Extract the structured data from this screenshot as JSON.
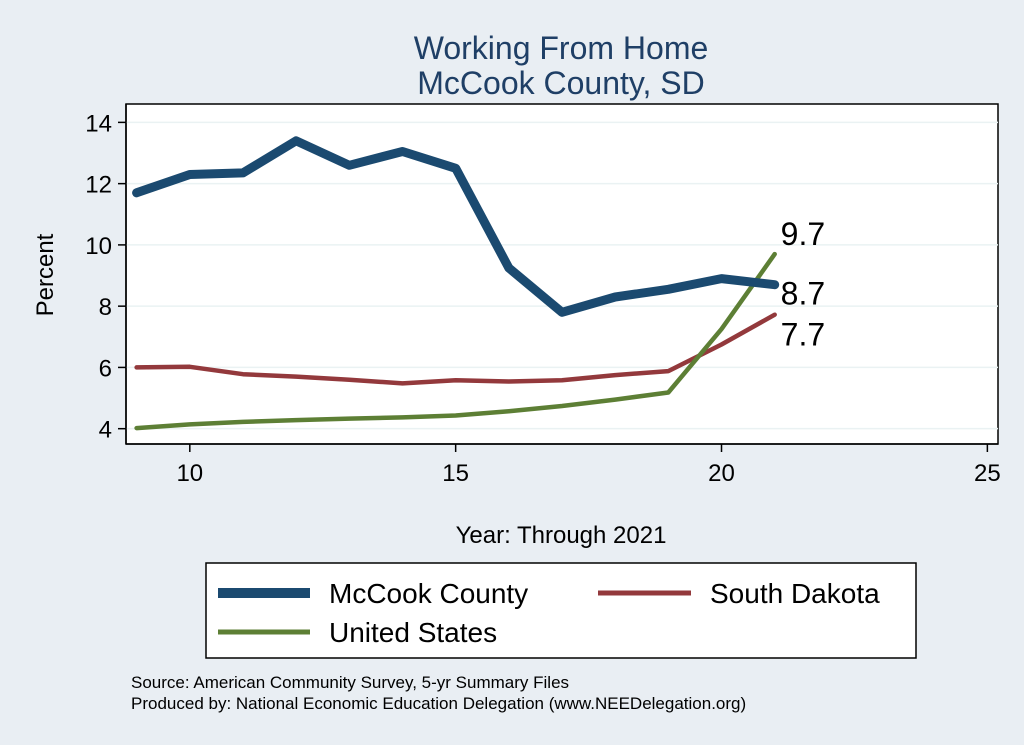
{
  "chart_data": {
    "type": "line",
    "title": [
      "Working From Home",
      "McCook County, SD"
    ],
    "xlabel": "Year: Through 2021",
    "ylabel": "Percent",
    "xlim": [
      8.8,
      25.2
    ],
    "ylim": [
      3.5,
      14.6
    ],
    "xticks": [
      10,
      15,
      20,
      25
    ],
    "yticks": [
      4,
      6,
      8,
      10,
      12,
      14
    ],
    "grid": true,
    "legend_position": "bottom",
    "series": [
      {
        "name": "McCook County",
        "color": "#1b4a70",
        "width": 9,
        "x": [
          9,
          10,
          11,
          12,
          13,
          14,
          15,
          16,
          17,
          18,
          19,
          20,
          21
        ],
        "y": [
          11.7,
          12.3,
          12.35,
          13.4,
          12.6,
          13.05,
          12.5,
          9.25,
          7.8,
          8.3,
          8.55,
          8.9,
          8.7
        ],
        "end_label": "8.7"
      },
      {
        "name": "South Dakota",
        "color": "#93393c",
        "width": 4.5,
        "x": [
          9,
          10,
          11,
          12,
          13,
          14,
          15,
          16,
          17,
          18,
          19,
          20,
          21
        ],
        "y": [
          6.0,
          6.02,
          5.78,
          5.7,
          5.6,
          5.48,
          5.58,
          5.54,
          5.58,
          5.75,
          5.88,
          6.75,
          7.72
        ],
        "end_label": "7.7"
      },
      {
        "name": "United States",
        "color": "#5d7f35",
        "width": 4.5,
        "x": [
          9,
          10,
          11,
          12,
          13,
          14,
          15,
          16,
          17,
          18,
          19,
          20,
          21
        ],
        "y": [
          4.02,
          4.14,
          4.22,
          4.28,
          4.33,
          4.37,
          4.43,
          4.57,
          4.74,
          4.95,
          5.18,
          7.25,
          9.7
        ],
        "end_label": "9.7"
      }
    ]
  },
  "footnotes": [
    "Source: American Community Survey, 5-yr Summary Files",
    "Produced by: National Economic Education Delegation (www.NEEDelegation.org)"
  ]
}
